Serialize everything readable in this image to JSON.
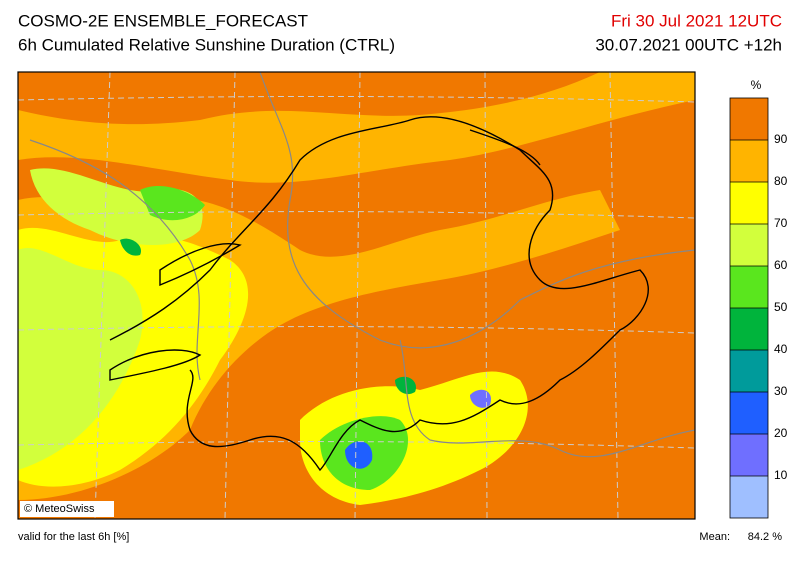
{
  "header": {
    "title": "COSMO-2E ENSEMBLE_FORECAST",
    "subtitle": "6h Cumulated Relative Sunshine Duration (CTRL)",
    "valid_time": "Fri 30 Jul 2021 12UTC",
    "run": "30.07.2021 00UTC +12h"
  },
  "map": {
    "credit": "© MeteoSwiss"
  },
  "legend": {
    "unit": "%",
    "lim": [
      0,
      100
    ],
    "ticks": [
      10,
      20,
      30,
      40,
      50,
      60,
      70,
      80,
      90
    ],
    "colors": [
      "#9fbfff",
      "#6f6fff",
      "#1f5fff",
      "#009b9b",
      "#00b43c",
      "#5ae61e",
      "#d2ff3c",
      "#ffff00",
      "#ffb400",
      "#f07800"
    ]
  },
  "footer": {
    "note": "valid for the last 6h [%]",
    "mean_label": "Mean:",
    "mean_value": "84.2 %"
  }
}
